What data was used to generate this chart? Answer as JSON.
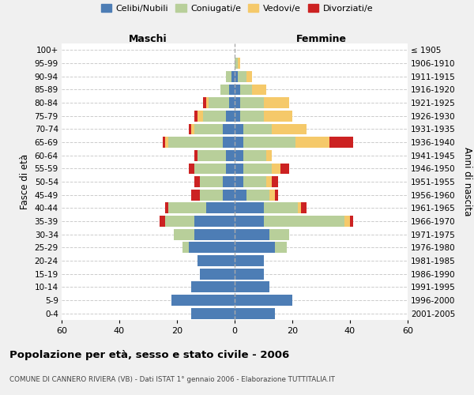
{
  "age_groups": [
    "0-4",
    "5-9",
    "10-14",
    "15-19",
    "20-24",
    "25-29",
    "30-34",
    "35-39",
    "40-44",
    "45-49",
    "50-54",
    "55-59",
    "60-64",
    "65-69",
    "70-74",
    "75-79",
    "80-84",
    "85-89",
    "90-94",
    "95-99",
    "100+"
  ],
  "birth_years": [
    "2001-2005",
    "1996-2000",
    "1991-1995",
    "1986-1990",
    "1981-1985",
    "1976-1980",
    "1971-1975",
    "1966-1970",
    "1961-1965",
    "1956-1960",
    "1951-1955",
    "1946-1950",
    "1941-1945",
    "1936-1940",
    "1931-1935",
    "1926-1930",
    "1921-1925",
    "1916-1920",
    "1911-1915",
    "1906-1910",
    "≤ 1905"
  ],
  "maschi": {
    "celibi": [
      15,
      22,
      15,
      12,
      13,
      16,
      14,
      14,
      10,
      4,
      4,
      3,
      3,
      4,
      4,
      3,
      2,
      2,
      1,
      0,
      0
    ],
    "coniugati": [
      0,
      0,
      0,
      0,
      0,
      2,
      7,
      10,
      13,
      8,
      8,
      11,
      10,
      19,
      10,
      8,
      7,
      3,
      2,
      0,
      0
    ],
    "vedovi": [
      0,
      0,
      0,
      0,
      0,
      0,
      0,
      0,
      0,
      0,
      0,
      0,
      0,
      1,
      1,
      2,
      1,
      0,
      0,
      0,
      0
    ],
    "divorziati": [
      0,
      0,
      0,
      0,
      0,
      0,
      0,
      2,
      1,
      3,
      2,
      2,
      1,
      1,
      1,
      1,
      1,
      0,
      0,
      0,
      0
    ]
  },
  "femmine": {
    "nubili": [
      14,
      20,
      12,
      10,
      10,
      14,
      12,
      10,
      10,
      4,
      3,
      3,
      3,
      3,
      3,
      2,
      2,
      2,
      1,
      0,
      0
    ],
    "coniugate": [
      0,
      0,
      0,
      0,
      0,
      4,
      7,
      28,
      12,
      8,
      8,
      10,
      8,
      18,
      10,
      8,
      8,
      4,
      3,
      1,
      0
    ],
    "vedove": [
      0,
      0,
      0,
      0,
      0,
      0,
      0,
      2,
      1,
      2,
      2,
      3,
      2,
      12,
      12,
      10,
      9,
      5,
      2,
      1,
      0
    ],
    "divorziate": [
      0,
      0,
      0,
      0,
      0,
      0,
      0,
      1,
      2,
      1,
      2,
      3,
      0,
      8,
      0,
      0,
      0,
      0,
      0,
      0,
      0
    ]
  },
  "colors": {
    "celibi": "#4d7db5",
    "coniugati": "#b8cf9a",
    "vedovi": "#f5c96a",
    "divorziati": "#cc2222"
  },
  "xlim": 60,
  "title": "Popolazione per età, sesso e stato civile - 2006",
  "subtitle": "COMUNE DI CANNERO RIVIERA (VB) - Dati ISTAT 1° gennaio 2006 - Elaborazione TUTTITALIA.IT",
  "legend_labels": [
    "Celibi/Nubili",
    "Coniugati/e",
    "Vedovi/e",
    "Divorziati/e"
  ],
  "label_maschi": "Maschi",
  "label_femmine": "Femmine",
  "ylabel_left": "Fasce di età",
  "ylabel_right": "Anni di nascita",
  "bg_color": "#f0f0f0",
  "plot_bg": "#ffffff"
}
